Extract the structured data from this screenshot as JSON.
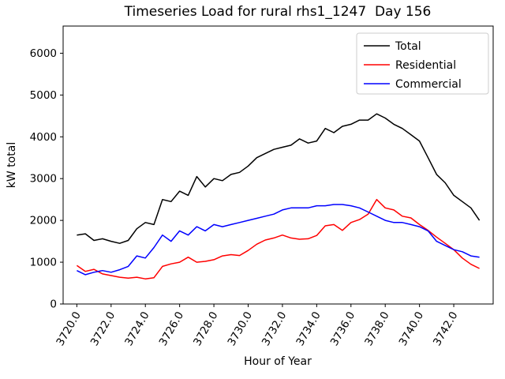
{
  "chart_data": {
    "type": "line",
    "title": "Timeseries Load for rural rhs1_1247  Day 156",
    "xlabel": "Hour of Year",
    "ylabel": "kW total",
    "xlim": [
      3719.2,
      3744.3
    ],
    "ylim": [
      0,
      6650
    ],
    "grid": false,
    "legend_position": "upper right",
    "yticks": [
      0,
      1000,
      2000,
      3000,
      4000,
      5000,
      6000
    ],
    "xticks": [
      3720,
      3722,
      3724,
      3726,
      3728,
      3730,
      3732,
      3734,
      3736,
      3738,
      3740,
      3742
    ],
    "xtick_labels": [
      "3720.0",
      "3722.0",
      "3724.0",
      "3726.0",
      "3728.0",
      "3730.0",
      "3732.0",
      "3734.0",
      "3736.0",
      "3738.0",
      "3740.0",
      "3742.0"
    ],
    "x": [
      3720.0,
      3720.5,
      3721.0,
      3721.5,
      3722.0,
      3722.5,
      3723.0,
      3723.5,
      3724.0,
      3724.5,
      3725.0,
      3725.5,
      3726.0,
      3726.5,
      3727.0,
      3727.5,
      3728.0,
      3728.5,
      3729.0,
      3729.5,
      3730.0,
      3730.5,
      3731.0,
      3731.5,
      3732.0,
      3732.5,
      3733.0,
      3733.5,
      3734.0,
      3734.5,
      3735.0,
      3735.5,
      3736.0,
      3736.5,
      3737.0,
      3737.5,
      3738.0,
      3738.5,
      3739.0,
      3739.5,
      3740.0,
      3740.5,
      3741.0,
      3741.5,
      3742.0,
      3742.5,
      3743.0,
      3743.5
    ],
    "series": [
      {
        "name": "Total",
        "color": "#000000",
        "values": [
          1650,
          1680,
          1520,
          1560,
          1500,
          1450,
          1520,
          1800,
          1950,
          1900,
          2500,
          2450,
          2700,
          2600,
          3050,
          2800,
          3000,
          2950,
          3100,
          3150,
          3300,
          3500,
          3600,
          3700,
          3750,
          3800,
          3950,
          3850,
          3900,
          4200,
          4100,
          4250,
          4300,
          4400,
          4400,
          4550,
          4450,
          4300,
          4200,
          4050,
          3900,
          3500,
          3100,
          2900,
          2600,
          2450,
          2300,
          2000
        ]
      },
      {
        "name": "Residential",
        "color": "#ff0000",
        "values": [
          920,
          780,
          830,
          720,
          680,
          640,
          620,
          640,
          600,
          630,
          900,
          960,
          1000,
          1120,
          1000,
          1020,
          1060,
          1150,
          1180,
          1160,
          1280,
          1430,
          1530,
          1580,
          1650,
          1580,
          1550,
          1560,
          1640,
          1870,
          1900,
          1760,
          1950,
          2020,
          2150,
          2500,
          2300,
          2250,
          2100,
          2060,
          1900,
          1760,
          1600,
          1450,
          1300,
          1100,
          950,
          850
        ]
      },
      {
        "name": "Commercial",
        "color": "#0000ff",
        "values": [
          800,
          700,
          760,
          800,
          760,
          820,
          900,
          1150,
          1100,
          1350,
          1650,
          1500,
          1750,
          1650,
          1850,
          1750,
          1900,
          1850,
          1900,
          1950,
          2000,
          2050,
          2100,
          2150,
          2250,
          2300,
          2300,
          2300,
          2350,
          2350,
          2380,
          2380,
          2350,
          2300,
          2200,
          2100,
          2000,
          1950,
          1950,
          1900,
          1850,
          1750,
          1500,
          1400,
          1300,
          1250,
          1150,
          1120
        ]
      }
    ]
  }
}
